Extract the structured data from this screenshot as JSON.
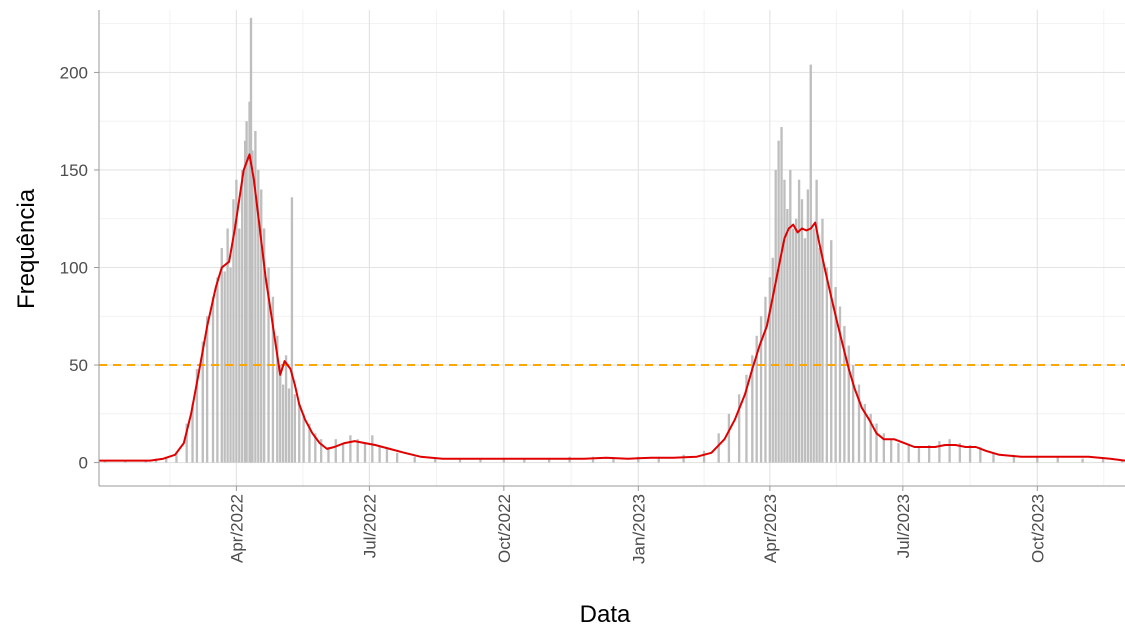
{
  "chart_data": {
    "type": "bar",
    "xlabel": "Data",
    "ylabel": "Frequência",
    "x_range": [
      "2021-12-28",
      "2023-11-30"
    ],
    "ylim": [
      -12,
      232
    ],
    "y_ticks": [
      0,
      50,
      100,
      150,
      200
    ],
    "x_ticks": [
      {
        "date": "2022-04-01",
        "label": "Apr/2022"
      },
      {
        "date": "2022-07-01",
        "label": "Jul/2022"
      },
      {
        "date": "2022-10-01",
        "label": "Oct/2022"
      },
      {
        "date": "2023-01-01",
        "label": "Jan/2023"
      },
      {
        "date": "2023-04-01",
        "label": "Apr/2023"
      },
      {
        "date": "2023-07-01",
        "label": "Jul/2023"
      },
      {
        "date": "2023-10-01",
        "label": "Oct/2023"
      }
    ],
    "grid": true,
    "series": [
      {
        "type": "bar",
        "color": "#bebebe",
        "data": [
          [
            "2022-01-01",
            1
          ],
          [
            "2022-01-15",
            1
          ],
          [
            "2022-01-29",
            1
          ],
          [
            "2022-02-05",
            2
          ],
          [
            "2022-02-12",
            3
          ],
          [
            "2022-02-19",
            5
          ],
          [
            "2022-02-26",
            20
          ],
          [
            "2022-03-02",
            30
          ],
          [
            "2022-03-05",
            48
          ],
          [
            "2022-03-09",
            62
          ],
          [
            "2022-03-12",
            75
          ],
          [
            "2022-03-16",
            85
          ],
          [
            "2022-03-19",
            95
          ],
          [
            "2022-03-22",
            110
          ],
          [
            "2022-03-24",
            98
          ],
          [
            "2022-03-26",
            120
          ],
          [
            "2022-03-28",
            100
          ],
          [
            "2022-03-30",
            135
          ],
          [
            "2022-04-01",
            145
          ],
          [
            "2022-04-03",
            120
          ],
          [
            "2022-04-05",
            150
          ],
          [
            "2022-04-07",
            165
          ],
          [
            "2022-04-08",
            175
          ],
          [
            "2022-04-10",
            185
          ],
          [
            "2022-04-11",
            228
          ],
          [
            "2022-04-12",
            160
          ],
          [
            "2022-04-14",
            170
          ],
          [
            "2022-04-16",
            150
          ],
          [
            "2022-04-18",
            140
          ],
          [
            "2022-04-20",
            120
          ],
          [
            "2022-04-23",
            100
          ],
          [
            "2022-04-26",
            85
          ],
          [
            "2022-04-29",
            65
          ],
          [
            "2022-05-01",
            50
          ],
          [
            "2022-05-03",
            40
          ],
          [
            "2022-05-05",
            55
          ],
          [
            "2022-05-07",
            38
          ],
          [
            "2022-05-09",
            136
          ],
          [
            "2022-05-11",
            35
          ],
          [
            "2022-05-14",
            30
          ],
          [
            "2022-05-17",
            25
          ],
          [
            "2022-05-21",
            20
          ],
          [
            "2022-05-25",
            15
          ],
          [
            "2022-05-29",
            12
          ],
          [
            "2022-06-03",
            8
          ],
          [
            "2022-06-08",
            12
          ],
          [
            "2022-06-13",
            10
          ],
          [
            "2022-06-18",
            14
          ],
          [
            "2022-06-23",
            12
          ],
          [
            "2022-06-28",
            10
          ],
          [
            "2022-07-03",
            14
          ],
          [
            "2022-07-08",
            8
          ],
          [
            "2022-07-13",
            7
          ],
          [
            "2022-07-20",
            5
          ],
          [
            "2022-08-01",
            3
          ],
          [
            "2022-08-15",
            2
          ],
          [
            "2022-09-01",
            2
          ],
          [
            "2022-09-15",
            2
          ],
          [
            "2022-10-01",
            2
          ],
          [
            "2022-10-15",
            2
          ],
          [
            "2022-11-01",
            2
          ],
          [
            "2022-11-15",
            3
          ],
          [
            "2022-12-01",
            3
          ],
          [
            "2022-12-15",
            2
          ],
          [
            "2023-01-01",
            3
          ],
          [
            "2023-01-15",
            3
          ],
          [
            "2023-02-01",
            4
          ],
          [
            "2023-02-15",
            6
          ],
          [
            "2023-02-25",
            15
          ],
          [
            "2023-03-04",
            25
          ],
          [
            "2023-03-11",
            35
          ],
          [
            "2023-03-16",
            45
          ],
          [
            "2023-03-20",
            55
          ],
          [
            "2023-03-23",
            65
          ],
          [
            "2023-03-26",
            75
          ],
          [
            "2023-03-29",
            85
          ],
          [
            "2023-04-01",
            95
          ],
          [
            "2023-04-03",
            105
          ],
          [
            "2023-04-05",
            150
          ],
          [
            "2023-04-07",
            165
          ],
          [
            "2023-04-09",
            172
          ],
          [
            "2023-04-11",
            145
          ],
          [
            "2023-04-13",
            130
          ],
          [
            "2023-04-15",
            150
          ],
          [
            "2023-04-17",
            120
          ],
          [
            "2023-04-19",
            125
          ],
          [
            "2023-04-21",
            145
          ],
          [
            "2023-04-23",
            135
          ],
          [
            "2023-04-25",
            115
          ],
          [
            "2023-04-27",
            140
          ],
          [
            "2023-04-29",
            204
          ],
          [
            "2023-05-01",
            120
          ],
          [
            "2023-05-03",
            145
          ],
          [
            "2023-05-05",
            110
          ],
          [
            "2023-05-07",
            125
          ],
          [
            "2023-05-10",
            100
          ],
          [
            "2023-05-13",
            114
          ],
          [
            "2023-05-16",
            90
          ],
          [
            "2023-05-19",
            80
          ],
          [
            "2023-05-22",
            70
          ],
          [
            "2023-05-25",
            60
          ],
          [
            "2023-05-28",
            50
          ],
          [
            "2023-06-01",
            40
          ],
          [
            "2023-06-05",
            30
          ],
          [
            "2023-06-09",
            25
          ],
          [
            "2023-06-13",
            20
          ],
          [
            "2023-06-18",
            15
          ],
          [
            "2023-06-23",
            12
          ],
          [
            "2023-06-28",
            10
          ],
          [
            "2023-07-05",
            9
          ],
          [
            "2023-07-12",
            8
          ],
          [
            "2023-07-19",
            9
          ],
          [
            "2023-07-26",
            11
          ],
          [
            "2023-08-02",
            12
          ],
          [
            "2023-08-09",
            10
          ],
          [
            "2023-08-16",
            9
          ],
          [
            "2023-08-23",
            8
          ],
          [
            "2023-09-01",
            5
          ],
          [
            "2023-09-15",
            4
          ],
          [
            "2023-10-01",
            3
          ],
          [
            "2023-10-15",
            3
          ],
          [
            "2023-11-01",
            2
          ],
          [
            "2023-11-15",
            2
          ],
          [
            "2023-11-28",
            1
          ]
        ]
      },
      {
        "type": "line",
        "color": "#e00000",
        "data": [
          [
            "2021-12-28",
            1
          ],
          [
            "2022-01-15",
            1
          ],
          [
            "2022-02-01",
            1
          ],
          [
            "2022-02-10",
            2
          ],
          [
            "2022-02-18",
            4
          ],
          [
            "2022-02-24",
            10
          ],
          [
            "2022-03-01",
            25
          ],
          [
            "2022-03-06",
            45
          ],
          [
            "2022-03-12",
            70
          ],
          [
            "2022-03-18",
            90
          ],
          [
            "2022-03-22",
            100
          ],
          [
            "2022-03-27",
            103
          ],
          [
            "2022-03-31",
            120
          ],
          [
            "2022-04-03",
            135
          ],
          [
            "2022-04-06",
            150
          ],
          [
            "2022-04-10",
            158
          ],
          [
            "2022-04-13",
            145
          ],
          [
            "2022-04-17",
            120
          ],
          [
            "2022-04-21",
            95
          ],
          [
            "2022-04-25",
            75
          ],
          [
            "2022-04-28",
            60
          ],
          [
            "2022-05-01",
            45
          ],
          [
            "2022-05-04",
            52
          ],
          [
            "2022-05-08",
            48
          ],
          [
            "2022-05-11",
            40
          ],
          [
            "2022-05-14",
            30
          ],
          [
            "2022-05-18",
            22
          ],
          [
            "2022-05-23",
            15
          ],
          [
            "2022-05-28",
            10
          ],
          [
            "2022-06-02",
            7
          ],
          [
            "2022-06-07",
            8
          ],
          [
            "2022-06-14",
            10
          ],
          [
            "2022-06-21",
            11
          ],
          [
            "2022-06-28",
            10
          ],
          [
            "2022-07-05",
            9
          ],
          [
            "2022-07-15",
            7
          ],
          [
            "2022-07-25",
            5
          ],
          [
            "2022-08-05",
            3
          ],
          [
            "2022-08-20",
            2
          ],
          [
            "2022-09-05",
            2
          ],
          [
            "2022-09-25",
            2
          ],
          [
            "2022-10-15",
            2
          ],
          [
            "2022-11-05",
            2
          ],
          [
            "2022-11-25",
            2
          ],
          [
            "2022-12-10",
            2.5
          ],
          [
            "2022-12-25",
            2
          ],
          [
            "2023-01-10",
            2.5
          ],
          [
            "2023-01-25",
            2.5
          ],
          [
            "2023-02-10",
            3
          ],
          [
            "2023-02-20",
            5
          ],
          [
            "2023-03-01",
            12
          ],
          [
            "2023-03-08",
            22
          ],
          [
            "2023-03-15",
            35
          ],
          [
            "2023-03-20",
            48
          ],
          [
            "2023-03-25",
            60
          ],
          [
            "2023-03-30",
            70
          ],
          [
            "2023-04-03",
            85
          ],
          [
            "2023-04-07",
            100
          ],
          [
            "2023-04-11",
            115
          ],
          [
            "2023-04-14",
            120
          ],
          [
            "2023-04-17",
            122
          ],
          [
            "2023-04-20",
            118
          ],
          [
            "2023-04-23",
            120
          ],
          [
            "2023-04-26",
            119
          ],
          [
            "2023-04-29",
            120
          ],
          [
            "2023-05-02",
            123
          ],
          [
            "2023-05-05",
            112
          ],
          [
            "2023-05-09",
            98
          ],
          [
            "2023-05-13",
            85
          ],
          [
            "2023-05-17",
            72
          ],
          [
            "2023-05-21",
            60
          ],
          [
            "2023-05-25",
            48
          ],
          [
            "2023-05-29",
            38
          ],
          [
            "2023-06-03",
            28
          ],
          [
            "2023-06-08",
            22
          ],
          [
            "2023-06-13",
            15
          ],
          [
            "2023-06-18",
            12
          ],
          [
            "2023-06-25",
            12
          ],
          [
            "2023-07-02",
            10
          ],
          [
            "2023-07-09",
            8
          ],
          [
            "2023-07-16",
            8
          ],
          [
            "2023-07-23",
            8
          ],
          [
            "2023-07-30",
            9
          ],
          [
            "2023-08-06",
            9
          ],
          [
            "2023-08-13",
            8
          ],
          [
            "2023-08-20",
            8
          ],
          [
            "2023-08-27",
            6
          ],
          [
            "2023-09-05",
            4
          ],
          [
            "2023-09-20",
            3
          ],
          [
            "2023-10-05",
            3
          ],
          [
            "2023-10-20",
            3
          ],
          [
            "2023-11-05",
            3
          ],
          [
            "2023-11-20",
            2
          ],
          [
            "2023-11-30",
            1
          ]
        ]
      },
      {
        "type": "hline",
        "color": "#ffa500",
        "y": 50
      }
    ]
  }
}
